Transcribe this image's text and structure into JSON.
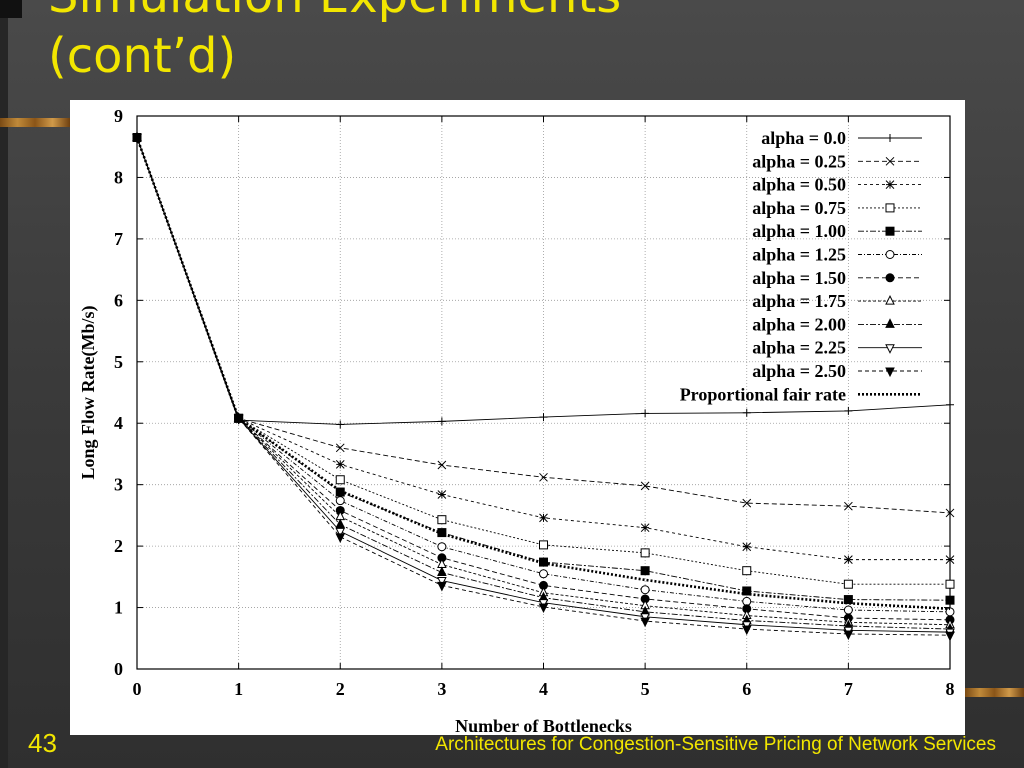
{
  "slide": {
    "title_line1": "Simulation Experiments",
    "title_line2": "(cont’d)",
    "number": "43",
    "footer": "Architectures for Congestion-Sensitive Pricing of Network Services"
  },
  "colors": {
    "title": "#f2e600",
    "background": "#3b3b3b",
    "plot": "#000000"
  },
  "chart_data": {
    "type": "line",
    "xlabel": "Number of Bottlenecks",
    "ylabel": "Long Flow Rate(Mb/s)",
    "xlim": [
      0,
      8
    ],
    "ylim": [
      0,
      9
    ],
    "x_ticks": [
      "0",
      "1",
      "2",
      "3",
      "4",
      "5",
      "6",
      "7",
      "8"
    ],
    "y_ticks": [
      "0",
      "1",
      "2",
      "3",
      "4",
      "5",
      "6",
      "7",
      "8",
      "9"
    ],
    "grid": true,
    "legend_position": "top-right",
    "x": [
      0,
      1,
      2,
      3,
      4,
      5,
      6,
      7,
      8
    ],
    "series": [
      {
        "name": "alpha = 0.0",
        "marker": "plus",
        "dash": "",
        "values": [
          8.65,
          4.05,
          3.98,
          4.03,
          4.1,
          4.16,
          4.17,
          4.2,
          4.3
        ]
      },
      {
        "name": "alpha = 0.25",
        "marker": "x",
        "dash": "5,3",
        "values": [
          8.65,
          4.08,
          3.6,
          3.32,
          3.12,
          2.98,
          2.7,
          2.65,
          2.54
        ]
      },
      {
        "name": "alpha = 0.50",
        "marker": "star",
        "dash": "3,3",
        "values": [
          8.65,
          4.08,
          3.33,
          2.84,
          2.46,
          2.3,
          1.99,
          1.78,
          1.78
        ]
      },
      {
        "name": "alpha = 0.75",
        "marker": "square-open",
        "dash": "2,2",
        "values": [
          8.65,
          4.08,
          3.08,
          2.43,
          2.02,
          1.89,
          1.6,
          1.38,
          1.38
        ]
      },
      {
        "name": "alpha = 1.00",
        "marker": "square-filled",
        "dash": "6,2,2,2",
        "values": [
          8.65,
          4.08,
          2.88,
          2.22,
          1.74,
          1.6,
          1.27,
          1.13,
          1.12
        ]
      },
      {
        "name": "alpha = 1.25",
        "marker": "circle-open",
        "dash": "4,2,1,2",
        "values": [
          8.65,
          4.08,
          2.74,
          1.99,
          1.55,
          1.29,
          1.1,
          0.96,
          0.93
        ]
      },
      {
        "name": "alpha = 1.50",
        "marker": "circle-filled",
        "dash": "5,3",
        "values": [
          8.65,
          4.08,
          2.58,
          1.81,
          1.36,
          1.14,
          0.98,
          0.83,
          0.8
        ]
      },
      {
        "name": "alpha = 1.75",
        "marker": "triangle-open",
        "dash": "3,2",
        "values": [
          8.65,
          4.08,
          2.48,
          1.7,
          1.24,
          1.03,
          0.87,
          0.76,
          0.72
        ]
      },
      {
        "name": "alpha = 2.00",
        "marker": "triangle-filled",
        "dash": "6,2,2,2",
        "values": [
          8.65,
          4.08,
          2.35,
          1.57,
          1.16,
          0.93,
          0.79,
          0.7,
          0.65
        ]
      },
      {
        "name": "alpha = 2.25",
        "marker": "triangle-down-open",
        "dash": "",
        "values": [
          8.65,
          4.08,
          2.24,
          1.44,
          1.08,
          0.85,
          0.72,
          0.63,
          0.6
        ]
      },
      {
        "name": "alpha = 2.50",
        "marker": "triangle-down-filled",
        "dash": "4,3",
        "values": [
          8.65,
          4.08,
          2.15,
          1.36,
          1.01,
          0.78,
          0.65,
          0.57,
          0.55
        ]
      },
      {
        "name": "Proportional fair rate",
        "marker": "none",
        "dash": "2,2",
        "width": 2.6,
        "values": [
          8.65,
          4.08,
          2.9,
          2.2,
          1.72,
          1.45,
          1.22,
          1.07,
          0.98
        ]
      }
    ]
  }
}
